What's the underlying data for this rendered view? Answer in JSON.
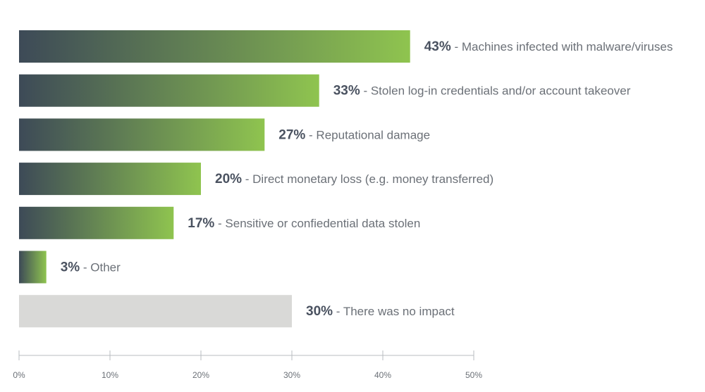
{
  "chart_data": {
    "type": "bar",
    "orientation": "horizontal",
    "title": "",
    "xlabel": "",
    "ylabel": "",
    "xlim": [
      0,
      50
    ],
    "grid": false,
    "ticks": [
      "0%",
      "10%",
      "20%",
      "30%",
      "40%",
      "50%"
    ],
    "tick_values": [
      0,
      10,
      20,
      30,
      40,
      50
    ],
    "bars": [
      {
        "pct_label": "43%",
        "desc": " - Machines infected with malware/viruses",
        "value": 43,
        "style": "gradient"
      },
      {
        "pct_label": "33%",
        "desc": " - Stolen log-in credentials and/or account takeover",
        "value": 33,
        "style": "gradient"
      },
      {
        "pct_label": "27%",
        "desc": " - Reputational damage",
        "value": 27,
        "style": "gradient"
      },
      {
        "pct_label": "20%",
        "desc": " - Direct monetary loss (e.g. money transferred)",
        "value": 20,
        "style": "gradient"
      },
      {
        "pct_label": "17%",
        "desc": " - Sensitive or confiedential data stolen",
        "value": 17,
        "style": "gradient"
      },
      {
        "pct_label": "3%",
        "desc": " - Other",
        "value": 3,
        "style": "gradient"
      },
      {
        "pct_label": "30%",
        "desc": " - There was no impact",
        "value": 30,
        "style": "gray"
      }
    ],
    "colors": {
      "gradient_start": "#3d4a57",
      "gradient_end": "#8fc44f",
      "gray_bar": "#d9d9d7",
      "axis": "#b9bcc0"
    }
  }
}
